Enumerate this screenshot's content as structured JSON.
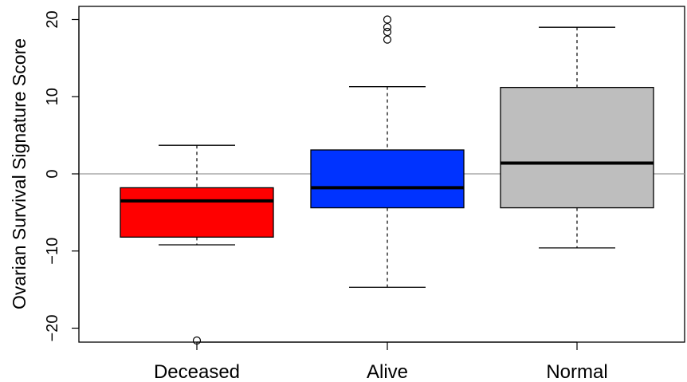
{
  "chart_data": {
    "type": "boxplot",
    "title": "",
    "xlabel": "",
    "ylabel": "Ovarian Survival Signature Score",
    "ylim": [
      -21.7,
      21.3
    ],
    "yticks": [
      -20,
      -10,
      0,
      10,
      20
    ],
    "ytick_labels": [
      "−20",
      "−10",
      "0",
      "10",
      "20"
    ],
    "reference_line": 0,
    "reference_line_color": "#999999",
    "grid": false,
    "legend": "none",
    "categories": [
      "Deceased",
      "Alive",
      "Normal"
    ],
    "series": [
      {
        "category": "Deceased",
        "color": "#ff0000",
        "whisker_low": -9.2,
        "q1": -8.2,
        "median": -3.5,
        "q3": -1.8,
        "whisker_high": 3.7,
        "outliers": [
          -21.6
        ]
      },
      {
        "category": "Alive",
        "color": "#0033ff",
        "whisker_low": -14.7,
        "q1": -4.4,
        "median": -1.8,
        "q3": 3.1,
        "whisker_high": 11.3,
        "outliers": [
          17.4,
          18.4,
          19.0,
          20.0
        ]
      },
      {
        "category": "Normal",
        "color": "#bebebe",
        "whisker_low": -9.6,
        "q1": -4.4,
        "median": 1.4,
        "q3": 11.2,
        "whisker_high": 19.0,
        "outliers": []
      }
    ]
  }
}
